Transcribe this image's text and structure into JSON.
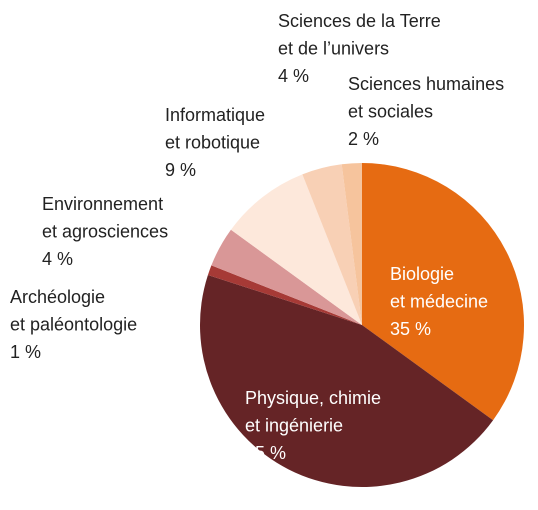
{
  "chart_data": {
    "type": "pie",
    "categories": [
      [
        "Biologie",
        "et médecine"
      ],
      [
        "Physique, chimie",
        "et ingénierie"
      ],
      [
        "Archéologie",
        "et paléontologie"
      ],
      [
        "Environnement",
        "et agrosciences"
      ],
      [
        "Informatique",
        "et robotique"
      ],
      [
        "Sciences de la Terre",
        "et de l’univers"
      ],
      [
        "Sciences humaines",
        "et sociales"
      ]
    ],
    "values": [
      35,
      45,
      1,
      4,
      9,
      4,
      2
    ],
    "value_labels": [
      "35 %",
      "45 %",
      "1 %",
      "4 %",
      "9 %",
      "4 %",
      "2 %"
    ],
    "colors": [
      "#e66b12",
      "#652426",
      "#a63a36",
      "#d99797",
      "#fde8db",
      "#f8d0b5",
      "#f6c49d"
    ]
  }
}
